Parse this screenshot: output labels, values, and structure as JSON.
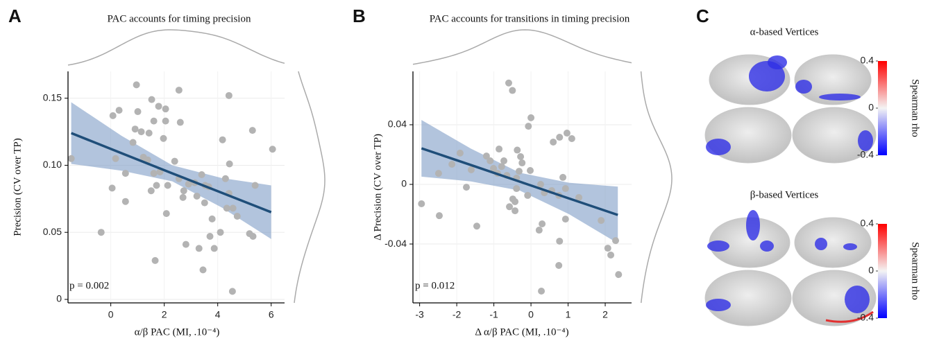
{
  "chart_data": [
    {
      "type": "scatter",
      "panel": "A",
      "title": "PAC accounts for timing precision",
      "x_label": "α/β PAC (MI, .10⁻⁴)",
      "y_label": "Precision  (CV over TP)",
      "annotation": "p = 0.002",
      "xlim": [
        -1.6,
        6.5
      ],
      "ylim": [
        -0.0026,
        0.17
      ],
      "xticks": [
        0,
        2,
        4,
        6
      ],
      "yticks": [
        0,
        0.05,
        {
          "value": 0.1,
          "label": "0.10"
        },
        0.15
      ],
      "grid": true,
      "color": "#b3b3b3",
      "x": [
        -1.48,
        0.05,
        0.18,
        0.08,
        0.31,
        0.55,
        0.55,
        -0.36,
        0.96,
        1.01,
        0.83,
        0.91,
        1.14,
        1.22,
        1.43,
        1.38,
        1.53,
        1.79,
        2.05,
        1.61,
        1.61,
        1.84,
        1.71,
        1.66,
        1.51,
        1.97,
        2.05,
        2.13,
        2.08,
        2.55,
        2.6,
        2.39,
        2.55,
        2.7,
        2.73,
        2.81,
        2.91,
        3.14,
        3.22,
        3.3,
        3.4,
        3.51,
        3.53,
        3.66,
        3.45,
        3.71,
        3.87,
        3.79,
        4.42,
        4.18,
        4.34,
        4.57,
        4.29,
        4.44,
        4.42,
        4.73,
        4.55,
        4.1,
        5.19,
        5.4,
        5.3,
        6.05,
        5.32
      ],
      "y": [
        0.105,
        0.083,
        0.105,
        0.137,
        0.141,
        0.094,
        0.073,
        0.05,
        0.16,
        0.14,
        0.117,
        0.127,
        0.125,
        0.106,
        0.124,
        0.104,
        0.149,
        0.144,
        0.142,
        0.133,
        0.094,
        0.095,
        0.085,
        0.029,
        0.081,
        0.12,
        0.133,
        0.085,
        0.064,
        0.156,
        0.132,
        0.103,
        0.09,
        0.076,
        0.081,
        0.041,
        0.086,
        0.087,
        0.077,
        0.038,
        0.093,
        0.072,
        0.085,
        0.084,
        0.022,
        0.047,
        0.038,
        0.06,
        0.152,
        0.119,
        0.068,
        0.068,
        0.09,
        0.101,
        0.079,
        0.062,
        0.006,
        0.05,
        0.049,
        0.085,
        0.126,
        0.112,
        0.047
      ],
      "fit": {
        "color": "#1f4e79",
        "band_color": "#7f9dc6",
        "x": [
          -1.48,
          0.4,
          2.3,
          4.15,
          6.0
        ],
        "y": [
          0.124,
          0.109,
          0.094,
          0.0795,
          0.065
        ],
        "lower": [
          0.101,
          0.096,
          0.088,
          0.0685,
          0.045
        ],
        "upper": [
          0.147,
          0.122,
          0.1,
          0.0905,
          0.085
        ]
      }
    },
    {
      "type": "scatter",
      "panel": "B",
      "title": "PAC accounts for transitions  in timing precision",
      "x_label": "Δ α/β PAC (MI, .10⁻⁴)",
      "y_label": "Δ Precision  (CV over TP)",
      "annotation": "p = 0.012",
      "xlim": [
        -3.18,
        2.71
      ],
      "ylim": [
        -0.0795,
        0.0758
      ],
      "xticks": [
        -3,
        -2,
        -1,
        0,
        1,
        2
      ],
      "yticks": [
        -0.04,
        0,
        0.04
      ],
      "grid": true,
      "color": "#b3b3b3",
      "x": [
        -2.95,
        -2.47,
        -2.49,
        -2.13,
        -1.91,
        -1.74,
        -1.61,
        -1.46,
        -1.2,
        -1.1,
        -1.01,
        -0.9,
        -0.86,
        -0.79,
        -0.73,
        -0.6,
        -0.5,
        -0.65,
        -0.58,
        -0.49,
        -0.43,
        -0.39,
        -0.37,
        -0.32,
        -0.28,
        -0.39,
        -0.43,
        -0.24,
        -0.07,
        0,
        -0.02,
        0.26,
        0.36,
        0.3,
        0.22,
        0.28,
        0.56,
        0.6,
        0.75,
        0.77,
        0.86,
        0.93,
        0.97,
        1.1,
        0.77,
        0.75,
        1.29,
        0.93,
        1.89,
        2.07,
        2.15,
        2.28,
        2.36,
        -0.09
      ],
      "y": [
        -0.013,
        -0.021,
        0.0074,
        0.0135,
        0.021,
        -0.0019,
        0.0098,
        -0.028,
        0.019,
        0.0158,
        0.0107,
        0.0074,
        0.0237,
        0.012,
        0.0158,
        0.068,
        0.063,
        0.006,
        -0.015,
        -0.0098,
        -0.0116,
        -0.0028,
        0.023,
        0.0088,
        0.0186,
        0.0042,
        -0.0177,
        0.0144,
        0.039,
        0.0447,
        0.0093,
        0,
        -0.0056,
        -0.0265,
        -0.0307,
        -0.0716,
        -0.0042,
        0.0284,
        -0.0074,
        0.0316,
        0.0047,
        -0.0028,
        0.0344,
        0.0307,
        -0.0381,
        -0.0544,
        -0.0088,
        -0.0233,
        -0.0242,
        -0.0428,
        -0.0474,
        -0.0377,
        -0.0605,
        -0.0074
      ],
      "fit": {
        "color": "#1f4e79",
        "band_color": "#7f9dc6",
        "x": [
          -2.95,
          -1.62,
          -0.3,
          1.02,
          2.34
        ],
        "y": [
          0.0242,
          0.013,
          0.0018,
          -0.0094,
          -0.0205
        ],
        "lower": [
          0.0052,
          0.002,
          -0.0042,
          -0.0199,
          -0.0395
        ],
        "upper": [
          0.0432,
          0.024,
          0.0078,
          0.0011,
          -0.0015
        ]
      }
    },
    {
      "type": "brain-map",
      "panel": "C",
      "maps": [
        {
          "title": "α-based Vertices"
        },
        {
          "title": "β-based Vertices"
        }
      ],
      "colorbar": {
        "label": "Spearman rho",
        "lim": [
          -0.4,
          0.4
        ],
        "ticks": [
          0.4,
          0,
          -0.4
        ]
      }
    }
  ]
}
